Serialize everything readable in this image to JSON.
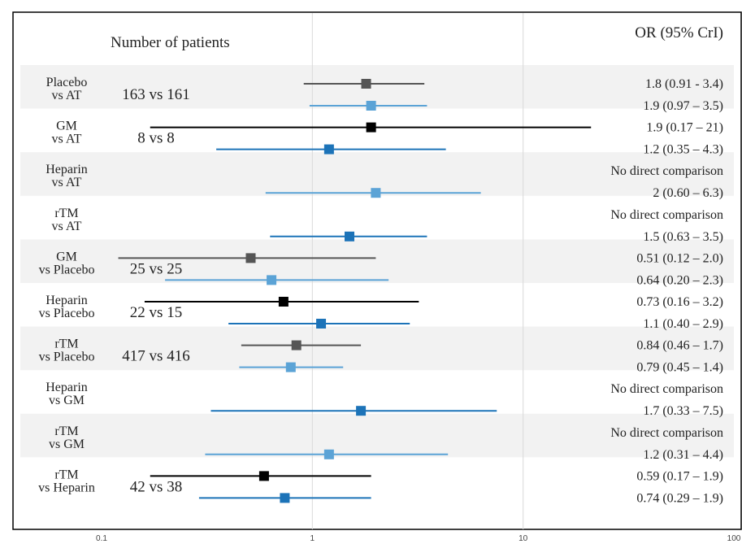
{
  "chart_data": {
    "type": "forest",
    "header_left": "Number of patients",
    "header_right": "OR (95% CrI)",
    "x_axis": {
      "scale": "log",
      "min": 0.1,
      "max": 100,
      "ticks": [
        0.1,
        1,
        10,
        100
      ],
      "tick_labels": [
        "0.1",
        "1",
        "10",
        "100"
      ]
    },
    "colors": {
      "dark_gray": "#555555",
      "black": "#000000",
      "light_blue": "#5ba3d6",
      "mid_blue": "#1c73b8",
      "band": "#f2f2f2",
      "gridline": "#d9d9d9"
    },
    "rows": [
      {
        "label1": "Placebo",
        "label2": "vs AT",
        "patients": "163 vs 161",
        "band": true,
        "estimates": [
          {
            "or": 1.8,
            "lo": 0.91,
            "hi": 3.4,
            "text": "1.8 (0.91 - 3.4)",
            "color": "dark_gray"
          },
          {
            "or": 1.9,
            "lo": 0.97,
            "hi": 3.5,
            "text": "1.9 (0.97 – 3.5)",
            "color": "light_blue"
          }
        ]
      },
      {
        "label1": "GM",
        "label2": "vs AT",
        "patients": "8 vs 8",
        "band": false,
        "estimates": [
          {
            "or": 1.9,
            "lo": 0.17,
            "hi": 21,
            "text": "1.9 (0.17 – 21)",
            "color": "black"
          },
          {
            "or": 1.2,
            "lo": 0.35,
            "hi": 4.3,
            "text": "1.2 (0.35 – 4.3)",
            "color": "mid_blue"
          }
        ]
      },
      {
        "label1": "Heparin",
        "label2": "vs AT",
        "patients": "",
        "band": true,
        "estimates": [
          {
            "or": null,
            "lo": null,
            "hi": null,
            "text": "No direct comparison",
            "color": ""
          },
          {
            "or": 2,
            "lo": 0.6,
            "hi": 6.3,
            "text": "2 (0.60 – 6.3)",
            "color": "light_blue"
          }
        ]
      },
      {
        "label1": "rTM",
        "label2": "vs AT",
        "patients": "",
        "band": false,
        "estimates": [
          {
            "or": null,
            "lo": null,
            "hi": null,
            "text": "No direct comparison",
            "color": ""
          },
          {
            "or": 1.5,
            "lo": 0.63,
            "hi": 3.5,
            "text": "1.5 (0.63 – 3.5)",
            "color": "mid_blue"
          }
        ]
      },
      {
        "label1": "GM",
        "label2": "vs Placebo",
        "patients": "25 vs 25",
        "band": true,
        "estimates": [
          {
            "or": 0.51,
            "lo": 0.12,
            "hi": 2.0,
            "text": "0.51 (0.12 – 2.0)",
            "color": "dark_gray"
          },
          {
            "or": 0.64,
            "lo": 0.2,
            "hi": 2.3,
            "text": "0.64 (0.20 – 2.3)",
            "color": "light_blue"
          }
        ]
      },
      {
        "label1": "Heparin",
        "label2": "vs Placebo",
        "patients": "22 vs 15",
        "band": false,
        "estimates": [
          {
            "or": 0.73,
            "lo": 0.16,
            "hi": 3.2,
            "text": "0.73 (0.16 – 3.2)",
            "color": "black"
          },
          {
            "or": 1.1,
            "lo": 0.4,
            "hi": 2.9,
            "text": "1.1 (0.40 – 2.9)",
            "color": "mid_blue"
          }
        ]
      },
      {
        "label1": "rTM",
        "label2": "vs Placebo",
        "patients": "417 vs 416",
        "band": true,
        "estimates": [
          {
            "or": 0.84,
            "lo": 0.46,
            "hi": 1.7,
            "text": "0.84 (0.46 – 1.7)",
            "color": "dark_gray"
          },
          {
            "or": 0.79,
            "lo": 0.45,
            "hi": 1.4,
            "text": "0.79 (0.45 – 1.4)",
            "color": "light_blue"
          }
        ]
      },
      {
        "label1": "Heparin",
        "label2": "vs GM",
        "patients": "",
        "band": false,
        "estimates": [
          {
            "or": null,
            "lo": null,
            "hi": null,
            "text": "No direct comparison",
            "color": ""
          },
          {
            "or": 1.7,
            "lo": 0.33,
            "hi": 7.5,
            "text": "1.7 (0.33 – 7.5)",
            "color": "mid_blue"
          }
        ]
      },
      {
        "label1": "rTM",
        "label2": "vs GM",
        "patients": "",
        "band": true,
        "estimates": [
          {
            "or": null,
            "lo": null,
            "hi": null,
            "text": "No direct comparison",
            "color": ""
          },
          {
            "or": 1.2,
            "lo": 0.31,
            "hi": 4.4,
            "text": "1.2 (0.31 – 4.4)",
            "color": "light_blue"
          }
        ]
      },
      {
        "label1": "rTM",
        "label2": "vs Heparin",
        "patients": "42 vs 38",
        "band": false,
        "estimates": [
          {
            "or": 0.59,
            "lo": 0.17,
            "hi": 1.9,
            "text": "0.59 (0.17 – 1.9)",
            "color": "black"
          },
          {
            "or": 0.74,
            "lo": 0.29,
            "hi": 1.9,
            "text": "0.74 (0.29 – 1.9)",
            "color": "mid_blue"
          }
        ]
      }
    ]
  }
}
